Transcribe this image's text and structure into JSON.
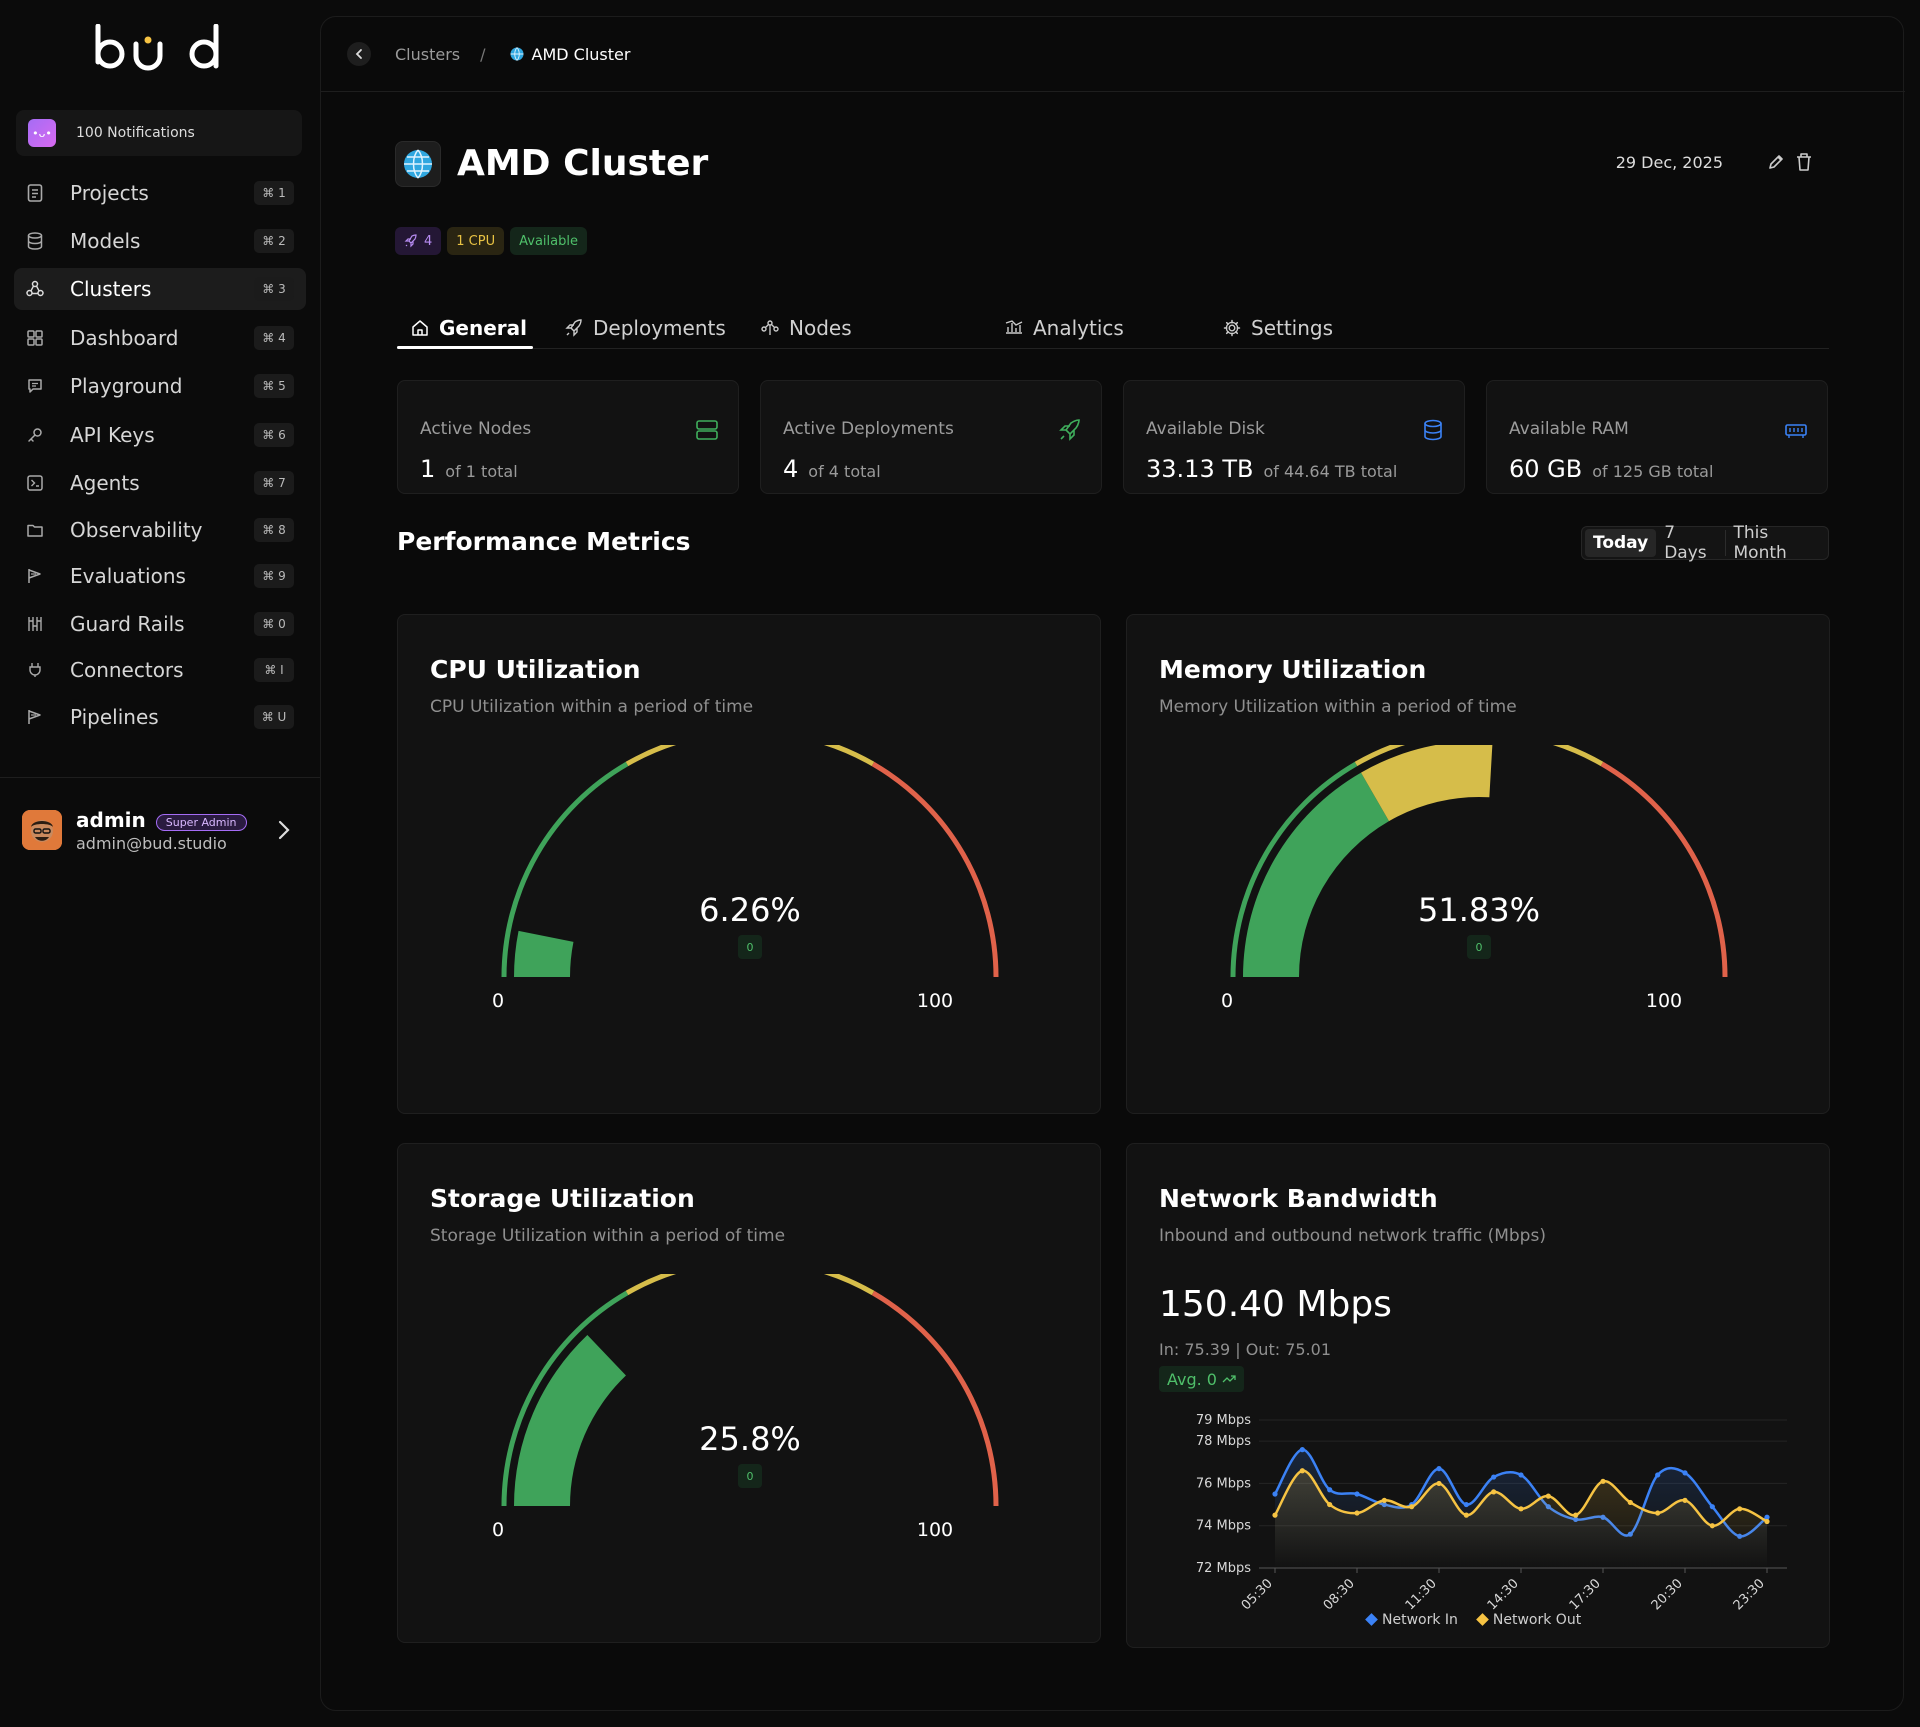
{
  "brand": {
    "logo_text": "bud"
  },
  "notifications": {
    "label": "100 Notifications"
  },
  "sidebar": {
    "items": [
      {
        "label": "Projects",
        "shortcut": "⌘ 1",
        "icon": "document-icon"
      },
      {
        "label": "Models",
        "shortcut": "⌘ 2",
        "icon": "database-icon"
      },
      {
        "label": "Clusters",
        "shortcut": "⌘ 3",
        "icon": "cluster-icon",
        "active": true
      },
      {
        "label": "Dashboard",
        "shortcut": "⌘ 4",
        "icon": "grid-icon"
      },
      {
        "label": "Playground",
        "shortcut": "⌘ 5",
        "icon": "chat-icon"
      },
      {
        "label": "API Keys",
        "shortcut": "⌘ 6",
        "icon": "key-icon"
      },
      {
        "label": "Agents",
        "shortcut": "⌘ 7",
        "icon": "terminal-icon"
      },
      {
        "label": "Observability",
        "shortcut": "⌘ 8",
        "icon": "folder-icon"
      },
      {
        "label": "Evaluations",
        "shortcut": "⌘ 9",
        "icon": "flag-icon"
      },
      {
        "label": "Guard Rails",
        "shortcut": "⌘ 0",
        "icon": "bars-icon"
      },
      {
        "label": "Connectors",
        "shortcut": "⌘ I",
        "icon": "plug-icon"
      },
      {
        "label": "Pipelines",
        "shortcut": "⌘ U",
        "icon": "pipeline-icon"
      }
    ]
  },
  "user": {
    "name": "admin",
    "role": "Super Admin",
    "email": "admin@bud.studio"
  },
  "breadcrumb": {
    "parent": "Clusters",
    "separator": "/",
    "current": "AMD Cluster"
  },
  "header": {
    "title": "AMD Cluster",
    "date": "29 Dec, 2025",
    "tags": {
      "deployments": "4",
      "cpu": "1 CPU",
      "status": "Available"
    }
  },
  "tabs": [
    {
      "label": "General",
      "icon": "home-icon",
      "active": true
    },
    {
      "label": "Deployments",
      "icon": "rocket-icon"
    },
    {
      "label": "Nodes",
      "icon": "nodes-icon"
    },
    {
      "label": "Analytics",
      "icon": "analytics-icon"
    },
    {
      "label": "Settings",
      "icon": "gear-icon"
    }
  ],
  "stats": [
    {
      "label": "Active Nodes",
      "value": "1",
      "sub": "of 1 total",
      "icon": "server-icon",
      "color": "#3fae5c"
    },
    {
      "label": "Active Deployments",
      "value": "4",
      "sub": "of 4 total",
      "icon": "rocket-icon",
      "color": "#3fae5c"
    },
    {
      "label": "Available Disk",
      "value": "33.13 TB",
      "sub": "of 44.64 TB total",
      "icon": "database-icon",
      "color": "#3b82f6"
    },
    {
      "label": "Available RAM",
      "value": "60 GB",
      "sub": "of 125 GB total",
      "icon": "ram-icon",
      "color": "#3b82f6"
    }
  ],
  "performance": {
    "title": "Performance Metrics",
    "ranges": [
      "Today",
      "7 Days",
      "This Month"
    ],
    "active_range": "Today"
  },
  "gauges": [
    {
      "title": "CPU Utilization",
      "subtitle": "CPU Utilization within a period of time",
      "value": 6.26,
      "display": "6.26%",
      "badge": "0",
      "min": "0",
      "max": "100",
      "fill_color": "#3fa35a"
    },
    {
      "title": "Memory Utilization",
      "subtitle": "Memory Utilization within a period of time",
      "value": 51.83,
      "display": "51.83%",
      "badge": "0",
      "min": "0",
      "max": "100",
      "fill_color": "#d6bd4a"
    },
    {
      "title": "Storage Utilization",
      "subtitle": "Storage Utilization within a period of time",
      "value": 25.8,
      "display": "25.8%",
      "badge": "0",
      "min": "0",
      "max": "100",
      "fill_color": "#3fa35a"
    }
  ],
  "network": {
    "title": "Network Bandwidth",
    "subtitle": "Inbound and outbound network traffic (Mbps)",
    "value": "150.40 Mbps",
    "io": "In: 75.39 | Out: 75.01",
    "avg": "Avg. 0"
  },
  "chart_data": {
    "type": "line",
    "ylabels": [
      "79 Mbps",
      "78 Mbps",
      "76 Mbps",
      "74 Mbps",
      "72 Mbps"
    ],
    "yticks": [
      79,
      78,
      76,
      74,
      72
    ],
    "ylim": [
      72,
      79
    ],
    "xticks": [
      "05:30",
      "08:30",
      "11:30",
      "14:30",
      "17:30",
      "20:30",
      "23:30"
    ],
    "series": [
      {
        "name": "Network In",
        "color": "#3b82f6",
        "values": [
          75.5,
          77.6,
          75.7,
          75.5,
          75.0,
          75.0,
          76.7,
          75.0,
          76.3,
          76.4,
          74.9,
          74.3,
          74.4,
          73.6,
          76.4,
          76.5,
          74.9,
          73.5,
          74.4
        ]
      },
      {
        "name": "Network Out",
        "color": "#f6c343",
        "values": [
          74.5,
          76.6,
          75.0,
          74.6,
          75.2,
          74.9,
          76.0,
          74.5,
          75.6,
          74.8,
          75.4,
          74.5,
          76.1,
          75.1,
          74.6,
          75.2,
          74.0,
          74.8,
          74.2
        ]
      }
    ]
  }
}
